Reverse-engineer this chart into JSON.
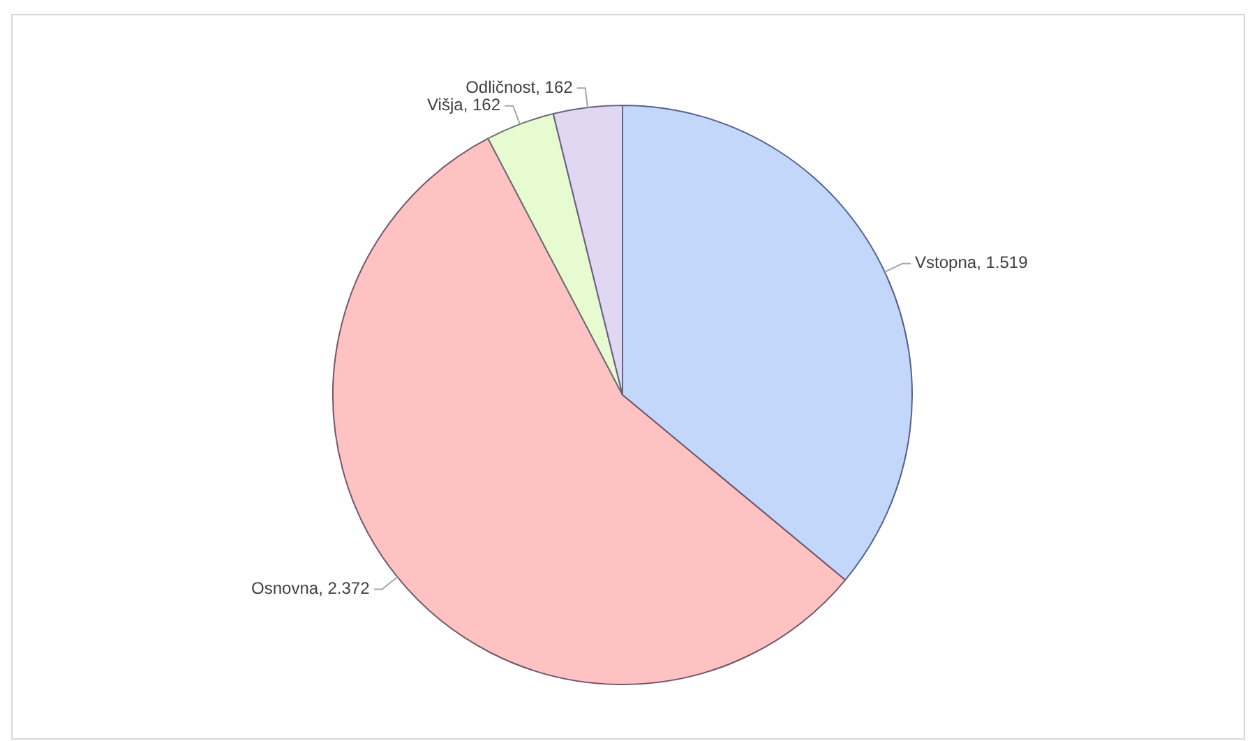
{
  "chart_data": {
    "type": "pie",
    "categories": [
      "Vstopna",
      "Osnovna",
      "Višja",
      "Odličnost"
    ],
    "values": [
      1519,
      2372,
      162,
      162
    ],
    "value_labels": [
      "1.519",
      "2.372",
      "162",
      "162"
    ],
    "colors": [
      "#c3d7fb",
      "#ffc2c2",
      "#e7fbd0",
      "#e1d7f2"
    ],
    "legend": false
  }
}
